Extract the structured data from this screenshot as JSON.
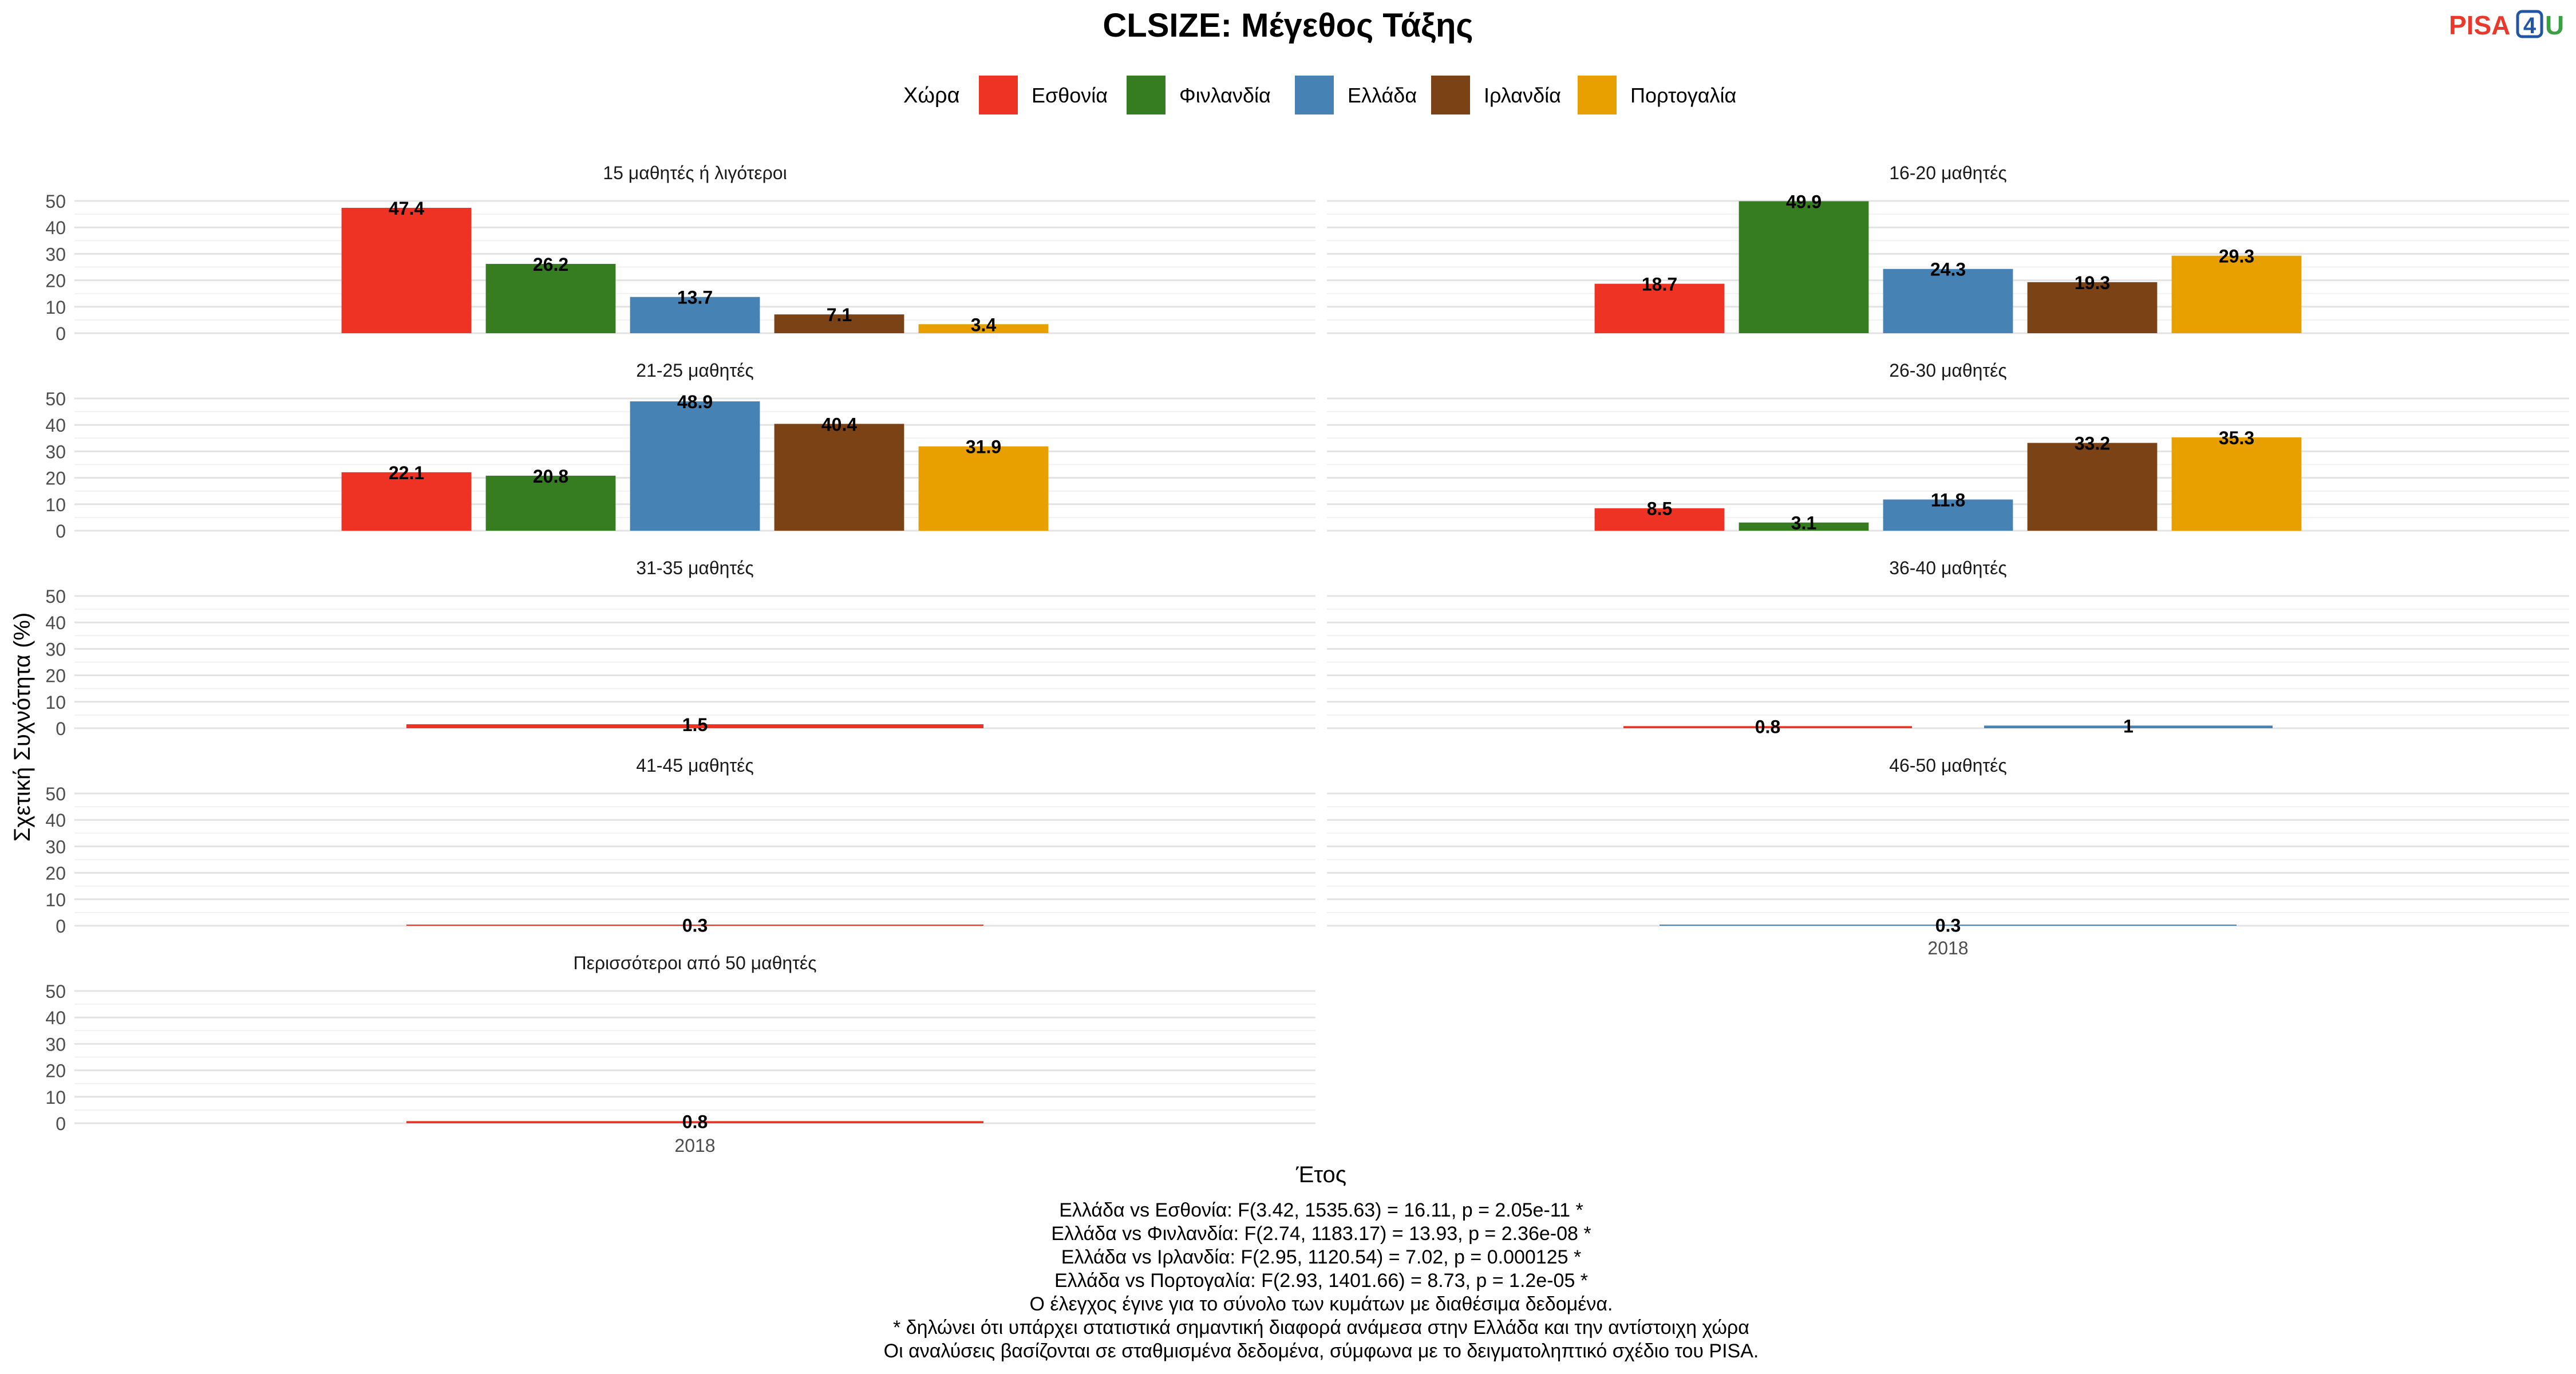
{
  "header": {
    "title": "CLSIZE: Μέγεθος Τάξης"
  },
  "logo": {
    "part1": "PISA",
    "part2": "4",
    "part3": "U",
    "color1": "#e8392c",
    "color2": "#2255a4",
    "color3": "#3aa043"
  },
  "legend": {
    "title": "Χώρα",
    "position": "top"
  },
  "chart_data": {
    "type": "bar",
    "ylabel": "Σχετική Συχνότητα (%)",
    "xlabel": "Έτος",
    "ylim": [
      0,
      50
    ],
    "yticks": [
      0,
      10,
      20,
      30,
      40,
      50
    ],
    "grid": true,
    "x_tick_label": "2018",
    "countries": [
      {
        "name": "Εσθονία",
        "color": "#ee3224"
      },
      {
        "name": "Φινλανδία",
        "color": "#367d21"
      },
      {
        "name": "Ελλάδα",
        "color": "#4682b4"
      },
      {
        "name": "Ιρλανδία",
        "color": "#7b4216"
      },
      {
        "name": "Πορτογαλία",
        "color": "#e8a000"
      }
    ],
    "panels": [
      {
        "title": "15 μαθητές ή λιγότεροι",
        "values": [
          47.4,
          26.2,
          13.7,
          7.1,
          3.4
        ],
        "labels": [
          "47.4",
          "26.2",
          "13.7",
          "7.1",
          "3.4"
        ]
      },
      {
        "title": "16-20 μαθητές",
        "values": [
          18.7,
          49.9,
          24.3,
          19.3,
          29.3
        ],
        "labels": [
          "18.7",
          "49.9",
          "24.3",
          "19.3",
          "29.3"
        ]
      },
      {
        "title": "21-25 μαθητές",
        "values": [
          22.1,
          20.8,
          48.9,
          40.4,
          31.9
        ],
        "labels": [
          "22.1",
          "20.8",
          "48.9",
          "40.4",
          "31.9"
        ]
      },
      {
        "title": "26-30 μαθητές",
        "values": [
          8.5,
          3.1,
          11.8,
          33.2,
          35.3
        ],
        "labels": [
          "8.5",
          "3.1",
          "11.8",
          "33.2",
          "35.3"
        ]
      },
      {
        "title": "31-35 μαθητές",
        "values": [
          1.5,
          null,
          null,
          null,
          null
        ],
        "labels": [
          "1.5",
          null,
          null,
          null,
          null
        ]
      },
      {
        "title": "36-40 μαθητές",
        "values": [
          0.8,
          null,
          1,
          null,
          null
        ],
        "labels": [
          "0.8",
          null,
          "1",
          null,
          null
        ]
      },
      {
        "title": "41-45 μαθητές",
        "values": [
          0.3,
          null,
          null,
          null,
          null
        ],
        "labels": [
          "0.3",
          null,
          null,
          null,
          null
        ]
      },
      {
        "title": "46-50 μαθητές",
        "values": [
          null,
          null,
          0.3,
          null,
          null
        ],
        "labels": [
          null,
          null,
          "0.3",
          null,
          null
        ]
      },
      {
        "title": "Περισσότεροι από 50 μαθητές",
        "values": [
          0.8,
          null,
          null,
          null,
          null
        ],
        "labels": [
          "0.8",
          null,
          null,
          null,
          null
        ]
      }
    ]
  },
  "caption": [
    "Ελλάδα vs Εσθονία: F(3.42, 1535.63) = 16.11, p = 2.05e-11 *",
    "Ελλάδα vs Φινλανδία: F(2.74, 1183.17) = 13.93, p = 2.36e-08 *",
    "Ελλάδα vs Ιρλανδία: F(2.95, 1120.54) = 7.02, p = 0.000125 *",
    "Ελλάδα vs Πορτογαλία: F(2.93, 1401.66) = 8.73, p = 1.2e-05 *",
    "Ο έλεγχος έγινε για το σύνολο των κυμάτων με διαθέσιμα δεδομένα.",
    "* δηλώνει ότι υπάρχει στατιστικά σημαντική διαφορά ανάμεσα στην Ελλάδα και την αντίστοιχη χώρα",
    "Οι αναλύσεις βασίζονται σε σταθμισμένα δεδομένα, σύμφωνα με το δειγματοληπτικό σχέδιο του PISA."
  ]
}
